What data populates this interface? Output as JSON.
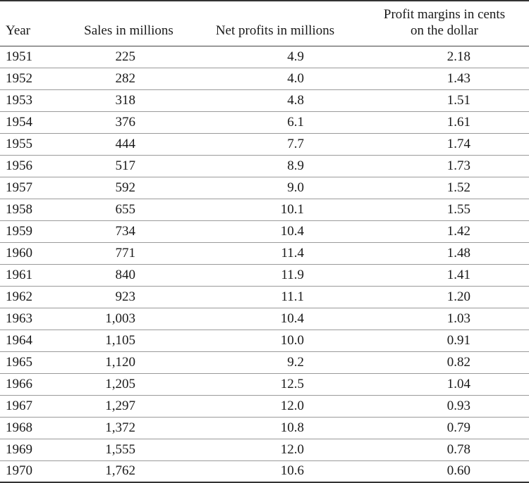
{
  "headers": {
    "year": "Year",
    "sales": "Sales in millions",
    "net_profits": "Net profits in millions",
    "margin_line1": "Profit margins in cents",
    "margin_line2": "on the dollar"
  },
  "rows": [
    {
      "year": "1951",
      "sales": "225",
      "profit": "4.9",
      "margin": "2.18"
    },
    {
      "year": "1952",
      "sales": "282",
      "profit": "4.0",
      "margin": "1.43"
    },
    {
      "year": "1953",
      "sales": "318",
      "profit": "4.8",
      "margin": "1.51"
    },
    {
      "year": "1954",
      "sales": "376",
      "profit": "6.1",
      "margin": "1.61"
    },
    {
      "year": "1955",
      "sales": "444",
      "profit": "7.7",
      "margin": "1.74"
    },
    {
      "year": "1956",
      "sales": "517",
      "profit": "8.9",
      "margin": "1.73"
    },
    {
      "year": "1957",
      "sales": "592",
      "profit": "9.0",
      "margin": "1.52"
    },
    {
      "year": "1958",
      "sales": "655",
      "profit": "10.1",
      "margin": "1.55"
    },
    {
      "year": "1959",
      "sales": "734",
      "profit": "10.4",
      "margin": "1.42"
    },
    {
      "year": "1960",
      "sales": "771",
      "profit": "11.4",
      "margin": "1.48"
    },
    {
      "year": "1961",
      "sales": "840",
      "profit": "11.9",
      "margin": "1.41"
    },
    {
      "year": "1962",
      "sales": "923",
      "profit": "11.1",
      "margin": "1.20"
    },
    {
      "year": "1963",
      "sales": "1,003",
      "profit": "10.4",
      "margin": "1.03"
    },
    {
      "year": "1964",
      "sales": "1,105",
      "profit": "10.0",
      "margin": "0.91"
    },
    {
      "year": "1965",
      "sales": "1,120",
      "profit": "9.2",
      "margin": "0.82"
    },
    {
      "year": "1966",
      "sales": "1,205",
      "profit": "12.5",
      "margin": "1.04"
    },
    {
      "year": "1967",
      "sales": "1,297",
      "profit": "12.0",
      "margin": "0.93"
    },
    {
      "year": "1968",
      "sales": "1,372",
      "profit": "10.8",
      "margin": "0.79"
    },
    {
      "year": "1969",
      "sales": "1,555",
      "profit": "12.0",
      "margin": "0.78"
    },
    {
      "year": "1970",
      "sales": "1,762",
      "profit": "10.6",
      "margin": "0.60"
    }
  ]
}
